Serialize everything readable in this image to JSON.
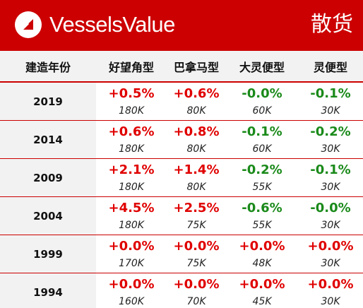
{
  "header": {
    "brand": "VesselsValue",
    "title": "散货",
    "bg_color": "#cc0000",
    "logo_icon": "vesselsvalue-logo-icon"
  },
  "table": {
    "columns": [
      "建造年份",
      "好望角型",
      "巴拿马型",
      "大灵便型",
      "灵便型"
    ],
    "rows": [
      {
        "year": "2019",
        "cells": [
          {
            "change": "+0.5%",
            "size": "180K",
            "trend": "up"
          },
          {
            "change": "+0.6%",
            "size": "80K",
            "trend": "up"
          },
          {
            "change": "-0.0%",
            "size": "60K",
            "trend": "down"
          },
          {
            "change": "-0.1%",
            "size": "30K",
            "trend": "down"
          }
        ]
      },
      {
        "year": "2014",
        "cells": [
          {
            "change": "+0.6%",
            "size": "180K",
            "trend": "up"
          },
          {
            "change": "+0.8%",
            "size": "80K",
            "trend": "up"
          },
          {
            "change": "-0.1%",
            "size": "60K",
            "trend": "down"
          },
          {
            "change": "-0.2%",
            "size": "30K",
            "trend": "down"
          }
        ]
      },
      {
        "year": "2009",
        "cells": [
          {
            "change": "+2.1%",
            "size": "180K",
            "trend": "up"
          },
          {
            "change": "+1.4%",
            "size": "80K",
            "trend": "up"
          },
          {
            "change": "-0.2%",
            "size": "55K",
            "trend": "down"
          },
          {
            "change": "-0.1%",
            "size": "30K",
            "trend": "down"
          }
        ]
      },
      {
        "year": "2004",
        "cells": [
          {
            "change": "+4.5%",
            "size": "180K",
            "trend": "up"
          },
          {
            "change": "+2.5%",
            "size": "75K",
            "trend": "up"
          },
          {
            "change": "-0.6%",
            "size": "55K",
            "trend": "down"
          },
          {
            "change": "-0.0%",
            "size": "30K",
            "trend": "down"
          }
        ]
      },
      {
        "year": "1999",
        "cells": [
          {
            "change": "+0.0%",
            "size": "170K",
            "trend": "up"
          },
          {
            "change": "+0.0%",
            "size": "75K",
            "trend": "up"
          },
          {
            "change": "+0.0%",
            "size": "48K",
            "trend": "up"
          },
          {
            "change": "+0.0%",
            "size": "30K",
            "trend": "up"
          }
        ]
      },
      {
        "year": "1994",
        "cells": [
          {
            "change": "+0.0%",
            "size": "160K",
            "trend": "up"
          },
          {
            "change": "+0.0%",
            "size": "70K",
            "trend": "up"
          },
          {
            "change": "+0.0%",
            "size": "45K",
            "trend": "up"
          },
          {
            "change": "+0.0%",
            "size": "30K",
            "trend": "up"
          }
        ]
      }
    ]
  },
  "colors": {
    "up": "#e00000",
    "down": "#1a8a1a",
    "rule": "#cc0000",
    "year_bg": "#f2f2f2"
  }
}
